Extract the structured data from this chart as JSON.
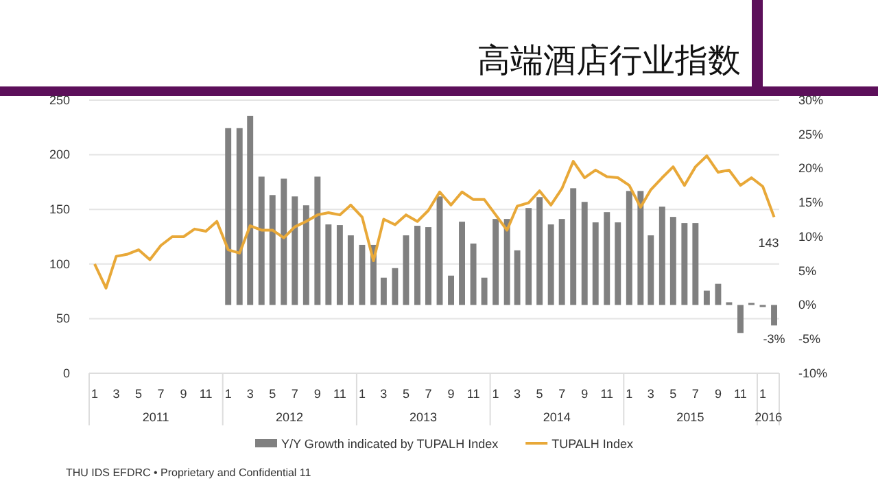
{
  "chart_data": {
    "type": "bar",
    "title": "高端酒店行业指数",
    "x": [
      "2011-01",
      "2011-02",
      "2011-03",
      "2011-04",
      "2011-05",
      "2011-06",
      "2011-07",
      "2011-08",
      "2011-09",
      "2011-10",
      "2011-11",
      "2011-12",
      "2012-01",
      "2012-02",
      "2012-03",
      "2012-04",
      "2012-05",
      "2012-06",
      "2012-07",
      "2012-08",
      "2012-09",
      "2012-10",
      "2012-11",
      "2012-12",
      "2013-01",
      "2013-02",
      "2013-03",
      "2013-04",
      "2013-05",
      "2013-06",
      "2013-07",
      "2013-08",
      "2013-09",
      "2013-10",
      "2013-11",
      "2013-12",
      "2014-01",
      "2014-02",
      "2014-03",
      "2014-04",
      "2014-05",
      "2014-06",
      "2014-07",
      "2014-08",
      "2014-09",
      "2014-10",
      "2014-11",
      "2014-12",
      "2015-01",
      "2015-02",
      "2015-03",
      "2015-04",
      "2015-05",
      "2015-06",
      "2015-07",
      "2015-08",
      "2015-09",
      "2015-10",
      "2015-11",
      "2015-12",
      "2016-01",
      "2016-02"
    ],
    "xticks": [
      {
        "value": "2011-01",
        "label": "1"
      },
      {
        "value": "2011-03",
        "label": "3"
      },
      {
        "value": "2011-05",
        "label": "5"
      },
      {
        "value": "2011-07",
        "label": "7"
      },
      {
        "value": "2011-09",
        "label": "9"
      },
      {
        "value": "2011-11",
        "label": "11"
      },
      {
        "value": "2012-01",
        "label": "1"
      },
      {
        "value": "2012-03",
        "label": "3"
      },
      {
        "value": "2012-05",
        "label": "5"
      },
      {
        "value": "2012-07",
        "label": "7"
      },
      {
        "value": "2012-09",
        "label": "9"
      },
      {
        "value": "2012-11",
        "label": "11"
      },
      {
        "value": "2013-01",
        "label": "1"
      },
      {
        "value": "2013-03",
        "label": "3"
      },
      {
        "value": "2013-05",
        "label": "5"
      },
      {
        "value": "2013-07",
        "label": "7"
      },
      {
        "value": "2013-09",
        "label": "9"
      },
      {
        "value": "2013-11",
        "label": "11"
      },
      {
        "value": "2014-01",
        "label": "1"
      },
      {
        "value": "2014-03",
        "label": "3"
      },
      {
        "value": "2014-05",
        "label": "5"
      },
      {
        "value": "2014-07",
        "label": "7"
      },
      {
        "value": "2014-09",
        "label": "9"
      },
      {
        "value": "2014-11",
        "label": "11"
      },
      {
        "value": "2015-01",
        "label": "1"
      },
      {
        "value": "2015-03",
        "label": "3"
      },
      {
        "value": "2015-05",
        "label": "5"
      },
      {
        "value": "2015-07",
        "label": "7"
      },
      {
        "value": "2015-09",
        "label": "9"
      },
      {
        "value": "2015-11",
        "label": "11"
      },
      {
        "value": "2016-01",
        "label": "1"
      }
    ],
    "xlim": [
      "2010-12-17",
      "2016-02-15"
    ],
    "ylim": [
      0,
      250
    ],
    "yticks": [
      0,
      50,
      100,
      150,
      200,
      250
    ],
    "y2lim": [
      -10,
      30
    ],
    "y2ticks": [
      {
        "value": -10,
        "label": "-10%"
      },
      {
        "value": -5,
        "label": "-5%"
      },
      {
        "value": 0,
        "label": "0%"
      },
      {
        "value": 5,
        "label": "5%"
      },
      {
        "value": 10,
        "label": "10%"
      },
      {
        "value": 15,
        "label": "15%"
      },
      {
        "value": 20,
        "label": "20%"
      },
      {
        "value": 25,
        "label": "25%"
      },
      {
        "value": 30,
        "label": "30%"
      }
    ],
    "grid": "y",
    "legend": "bottom",
    "series": [
      {
        "name": "Y/Y Growth indicated by TUPALH Index",
        "type": "bar",
        "axis": "y2",
        "color": "#808080",
        "x": [
          "2012-01",
          "2012-02",
          "2012-03",
          "2012-04",
          "2012-05",
          "2012-06",
          "2012-07",
          "2012-08",
          "2012-09",
          "2012-10",
          "2012-11",
          "2012-12",
          "2013-01",
          "2013-02",
          "2013-03",
          "2013-04",
          "2013-05",
          "2013-06",
          "2013-07",
          "2013-08",
          "2013-09",
          "2013-10",
          "2013-11",
          "2013-12",
          "2014-01",
          "2014-02",
          "2014-03",
          "2014-04",
          "2014-05",
          "2014-06",
          "2014-07",
          "2014-08",
          "2014-09",
          "2014-10",
          "2014-11",
          "2014-12",
          "2015-01",
          "2015-02",
          "2015-03",
          "2015-04",
          "2015-05",
          "2015-06",
          "2015-07",
          "2015-08",
          "2015-09",
          "2015-10",
          "2015-11",
          "2015-12",
          "2016-01",
          "2016-02"
        ],
        "values": [
          25.9,
          25.9,
          27.7,
          18.8,
          16.1,
          18.5,
          15.9,
          14.6,
          18.8,
          11.8,
          11.7,
          10.2,
          8.8,
          8.8,
          4.0,
          5.4,
          10.2,
          11.6,
          11.4,
          15.9,
          4.3,
          12.2,
          9.0,
          4.0,
          12.6,
          12.6,
          8.0,
          14.2,
          15.8,
          11.8,
          12.6,
          17.1,
          15.1,
          12.1,
          13.6,
          12.1,
          16.7,
          16.7,
          10.2,
          14.4,
          12.9,
          12.0,
          12.0,
          2.1,
          3.1,
          0.4,
          -4.1,
          0.3,
          -0.3,
          -3
        ],
        "value_labels": [
          null,
          null,
          null,
          null,
          null,
          null,
          null,
          null,
          null,
          null,
          null,
          null,
          null,
          null,
          null,
          null,
          null,
          null,
          null,
          null,
          null,
          null,
          null,
          null,
          null,
          null,
          null,
          null,
          null,
          null,
          null,
          null,
          null,
          null,
          null,
          null,
          null,
          null,
          null,
          null,
          null,
          null,
          null,
          null,
          null,
          null,
          null,
          null,
          null,
          "-3%"
        ]
      },
      {
        "name": "TUPALH Index",
        "type": "line",
        "color": "#e8a838",
        "values": [
          100,
          78,
          107,
          109,
          113,
          104,
          117,
          125,
          125,
          132,
          130,
          139,
          113,
          110,
          135,
          131,
          131,
          124,
          134,
          139,
          145,
          147,
          145,
          154,
          143,
          103,
          141,
          136,
          145,
          139,
          149,
          166,
          154,
          166,
          159,
          159,
          145,
          131,
          153,
          156,
          167,
          154,
          169,
          194,
          179,
          186,
          180,
          179,
          172,
          152,
          168,
          179,
          189,
          172,
          189,
          199,
          184,
          186,
          172,
          179,
          171,
          143
        ],
        "value_labels": [
          null,
          null,
          null,
          null,
          null,
          null,
          null,
          null,
          null,
          null,
          null,
          null,
          null,
          null,
          null,
          null,
          null,
          null,
          null,
          null,
          null,
          null,
          null,
          null,
          null,
          null,
          null,
          null,
          null,
          null,
          null,
          null,
          null,
          null,
          null,
          null,
          null,
          null,
          null,
          null,
          null,
          null,
          null,
          null,
          null,
          null,
          null,
          null,
          null,
          null,
          null,
          null,
          null,
          null,
          null,
          null,
          null,
          null,
          null,
          null,
          null,
          "143"
        ]
      }
    ],
    "annotations": [
      "2011",
      "2012",
      "2013",
      "2014",
      "2015",
      "2016",
      "THU IDS EFDRC • Proprietary and Confidential  11"
    ]
  }
}
